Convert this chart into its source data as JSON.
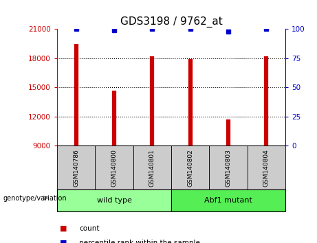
{
  "title": "GDS3198 / 9762_at",
  "samples": [
    "GSM140786",
    "GSM140800",
    "GSM140801",
    "GSM140802",
    "GSM140803",
    "GSM140804"
  ],
  "counts": [
    19500,
    14700,
    18200,
    17900,
    11700,
    18200
  ],
  "percentiles": [
    100,
    99,
    100,
    100,
    98,
    100
  ],
  "ylim_left": [
    9000,
    21000
  ],
  "ylim_right": [
    0,
    100
  ],
  "yticks_left": [
    9000,
    12000,
    15000,
    18000,
    21000
  ],
  "yticks_right": [
    0,
    25,
    50,
    75,
    100
  ],
  "bar_color": "#cc0000",
  "dot_color": "#0000cc",
  "groups": [
    {
      "label": "wild type",
      "indices": [
        0,
        1,
        2
      ],
      "color": "#99ff99"
    },
    {
      "label": "Abf1 mutant",
      "indices": [
        3,
        4,
        5
      ],
      "color": "#55ee55"
    }
  ],
  "group_label": "genotype/variation",
  "legend_count": "count",
  "legend_percentile": "percentile rank within the sample",
  "title_fontsize": 11,
  "axis_left_color": "#cc0000",
  "axis_right_color": "#0000cc",
  "xticklabel_area_color": "#cccccc",
  "grid_lines": [
    12000,
    15000,
    18000
  ]
}
